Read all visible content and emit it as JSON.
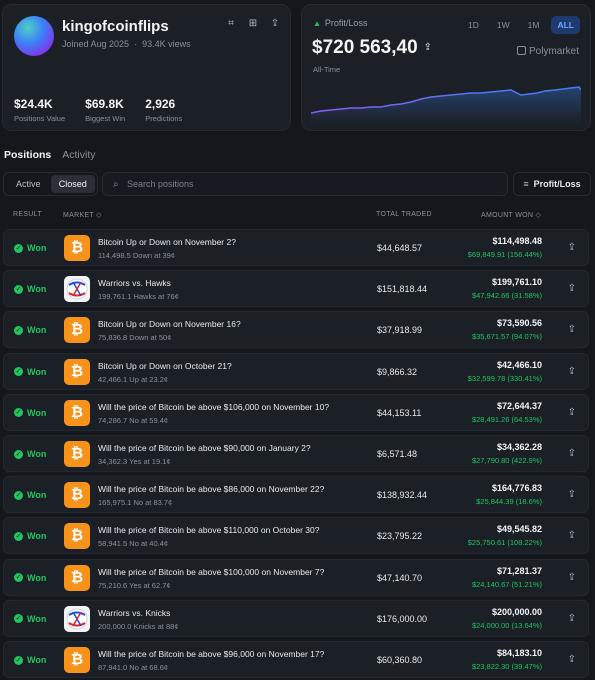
{
  "profile": {
    "username": "kingofcoinflips",
    "joined": "Joined Aug 2025",
    "views": "93.4K views",
    "stats": [
      {
        "value": "$24.4K",
        "label": "Positions Value"
      },
      {
        "value": "$69.8K",
        "label": "Biggest Win"
      },
      {
        "value": "2,926",
        "label": "Predictions"
      }
    ]
  },
  "pnl": {
    "label": "Profit/Loss",
    "value": "$720 563,40",
    "period": "All-Time",
    "ranges": [
      "1D",
      "1W",
      "1M",
      "ALL"
    ],
    "active_range": "ALL",
    "brand": "Polymarket",
    "line_color": "#3b82f6",
    "line_color_start": "#8b5cf6"
  },
  "tabs": {
    "positions": "Positions",
    "activity": "Activity"
  },
  "filter": {
    "active": "Active",
    "closed": "Closed"
  },
  "search": {
    "placeholder": "Search positions"
  },
  "sort": {
    "label": "Profit/Loss"
  },
  "table": {
    "headers": {
      "result": "RESULT",
      "market": "MARKET ◇",
      "total": "TOTAL TRADED",
      "won": "AMOUNT WON ◇"
    },
    "rows": [
      {
        "result": "Won",
        "icon": "bitcoin",
        "title": "Bitcoin Up or Down on November 2?",
        "sub": "114,498.5 Down at 39¢",
        "traded": "$44,648.57",
        "won": "$114,498.48",
        "won_sub": "$69,849.91 (156.44%)"
      },
      {
        "result": "Won",
        "icon": "nba",
        "title": "Warriors vs. Hawks",
        "sub": "199,761.1 Hawks at 76¢",
        "traded": "$151,818.44",
        "won": "$199,761.10",
        "won_sub": "$47,942.66 (31.58%)"
      },
      {
        "result": "Won",
        "icon": "bitcoin",
        "title": "Bitcoin Up or Down on November 16?",
        "sub": "75,836.8 Down at 50¢",
        "traded": "$37,918.99",
        "won": "$73,590.56",
        "won_sub": "$35,671.57 (94.07%)"
      },
      {
        "result": "Won",
        "icon": "bitcoin",
        "title": "Bitcoin Up or Down on October 21?",
        "sub": "42,466.1 Up at 23.2¢",
        "traded": "$9,866.32",
        "won": "$42,466.10",
        "won_sub": "$32,599.78 (330.41%)"
      },
      {
        "result": "Won",
        "icon": "bitcoin",
        "title": "Will the price of Bitcoin be above $106,000 on November 10?",
        "sub": "74,286.7 No at 59.4¢",
        "traded": "$44,153.11",
        "won": "$72,644.37",
        "won_sub": "$28,491.26 (64.53%)"
      },
      {
        "result": "Won",
        "icon": "bitcoin",
        "title": "Will the price of Bitcoin be above $90,000 on January 2?",
        "sub": "34,362.3 Yes at 19.1¢",
        "traded": "$6,571.48",
        "won": "$34,362.28",
        "won_sub": "$27,790.80 (422.9%)"
      },
      {
        "result": "Won",
        "icon": "bitcoin",
        "title": "Will the price of Bitcoin be above $86,000 on November 22?",
        "sub": "165,975.1 No at 83.7¢",
        "traded": "$138,932.44",
        "won": "$164,776.83",
        "won_sub": "$25,844.39 (18.6%)"
      },
      {
        "result": "Won",
        "icon": "bitcoin",
        "title": "Will the price of Bitcoin be above $110,000 on October 30?",
        "sub": "58,941.5 No at 40.4¢",
        "traded": "$23,795.22",
        "won": "$49,545.82",
        "won_sub": "$25,750.61 (108.22%)"
      },
      {
        "result": "Won",
        "icon": "bitcoin",
        "title": "Will the price of Bitcoin be above $100,000 on November 7?",
        "sub": "75,210.6 Yes at 62.7¢",
        "traded": "$47,140.70",
        "won": "$71,281.37",
        "won_sub": "$24,140.67 (51.21%)"
      },
      {
        "result": "Won",
        "icon": "nba",
        "title": "Warriors vs. Knicks",
        "sub": "200,000.0 Knicks at 88¢",
        "traded": "$176,000.00",
        "won": "$200,000.00",
        "won_sub": "$24,000.00 (13.64%)"
      },
      {
        "result": "Won",
        "icon": "bitcoin",
        "title": "Will the price of Bitcoin be above $96,000 on November 17?",
        "sub": "87,941.0 No at 68.6¢",
        "traded": "$60,360.80",
        "won": "$84,183.10",
        "won_sub": "$23,822.30 (39.47%)"
      }
    ]
  }
}
